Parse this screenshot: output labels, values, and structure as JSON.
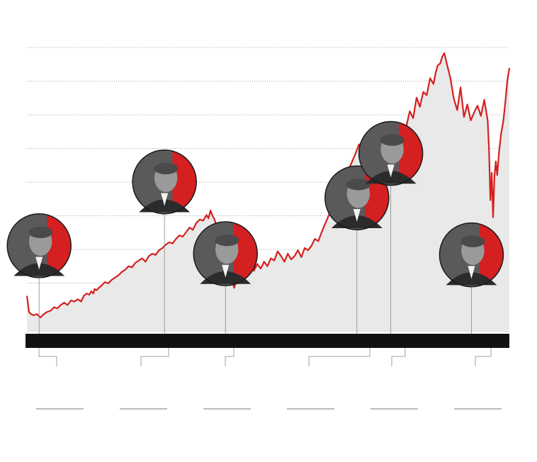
{
  "colors": {
    "line": "#d42020",
    "area": "#e9e9e9",
    "grid": "#8a8a8a",
    "axis_band": "#111111",
    "callout": "#888888",
    "portrait_dark": "#2b2b2b",
    "portrait_accent": "#d42020",
    "footer_rule": "#777777"
  },
  "chart_data": {
    "type": "area",
    "title": "",
    "xlabel": "",
    "ylabel": "",
    "grid": true,
    "gridline_count": 9,
    "x": [
      0,
      3,
      6,
      10,
      15,
      20,
      25,
      30,
      35,
      40,
      45,
      50,
      55,
      60,
      65,
      70,
      75,
      80,
      84,
      88,
      92,
      95,
      98,
      100,
      103,
      106,
      110,
      115,
      120,
      125,
      130,
      135,
      140,
      145,
      150,
      155,
      160,
      165,
      170,
      175,
      180,
      185,
      190,
      195,
      200,
      205,
      210,
      215,
      220,
      225,
      230,
      235,
      240,
      245,
      250,
      255,
      260,
      265,
      268,
      271,
      274,
      277,
      280,
      283,
      286,
      289,
      291,
      293,
      296,
      299,
      302,
      306,
      310,
      315,
      320,
      325,
      330,
      335,
      340,
      345,
      350,
      355,
      360,
      365,
      370,
      375,
      380,
      385,
      390,
      395,
      400,
      405,
      410,
      415,
      420,
      425,
      430,
      435,
      440,
      445,
      450,
      455,
      460,
      465,
      470,
      475,
      480,
      485,
      490,
      495,
      500,
      505,
      510,
      515,
      520,
      525,
      530,
      535,
      540,
      545,
      550,
      555,
      560,
      565,
      570,
      575,
      580,
      585,
      590,
      595,
      600,
      603,
      606,
      610,
      613,
      616,
      620,
      625,
      630,
      635,
      640,
      645,
      650,
      655,
      660,
      665,
      670,
      675,
      680,
      682,
      684,
      686,
      688,
      690,
      692,
      694,
      697,
      700,
      703,
      706,
      709,
      712
    ],
    "values": [
      22,
      8,
      6,
      5,
      6,
      3,
      6,
      8,
      9,
      12,
      11,
      14,
      16,
      14,
      18,
      17,
      19,
      17,
      22,
      24,
      23,
      26,
      24,
      28,
      27,
      29,
      31,
      34,
      33,
      36,
      38,
      40,
      43,
      45,
      48,
      47,
      51,
      53,
      55,
      52,
      57,
      59,
      58,
      62,
      64,
      67,
      69,
      68,
      72,
      75,
      74,
      78,
      82,
      80,
      86,
      89,
      88,
      93,
      90,
      97,
      92,
      89,
      83,
      80,
      72,
      68,
      61,
      52,
      40,
      33,
      36,
      29,
      39,
      43,
      37,
      45,
      48,
      44,
      50,
      46,
      52,
      48,
      55,
      53,
      61,
      57,
      52,
      59,
      54,
      57,
      62,
      56,
      64,
      62,
      66,
      72,
      70,
      78,
      85,
      92,
      99,
      104,
      110,
      118,
      124,
      133,
      140,
      147,
      155,
      150,
      161,
      166,
      159,
      166,
      156,
      149,
      139,
      151,
      160,
      170,
      158,
      164,
      171,
      184,
      178,
      196,
      188,
      201,
      198,
      213,
      208,
      217,
      224,
      226,
      232,
      235,
      225,
      213,
      195,
      185,
      205,
      179,
      190,
      176,
      183,
      189,
      180,
      194,
      176,
      150,
      106,
      130,
      91,
      128,
      140,
      128,
      150,
      165,
      175,
      192,
      211,
      222
    ],
    "ylim": [
      -10,
      240
    ]
  },
  "events": [
    {
      "name": "leader-1",
      "x": 18,
      "y": 66,
      "r": 45
    },
    {
      "name": "leader-2",
      "x": 203,
      "y": 122,
      "r": 45
    },
    {
      "name": "leader-3",
      "x": 293,
      "y": 59,
      "r": 45
    },
    {
      "name": "leader-4",
      "x": 487,
      "y": 108,
      "r": 45
    },
    {
      "name": "leader-5",
      "x": 537,
      "y": 147,
      "r": 45
    },
    {
      "name": "leader-6",
      "x": 656,
      "y": 58,
      "r": 45
    }
  ],
  "footer_rules": 6
}
